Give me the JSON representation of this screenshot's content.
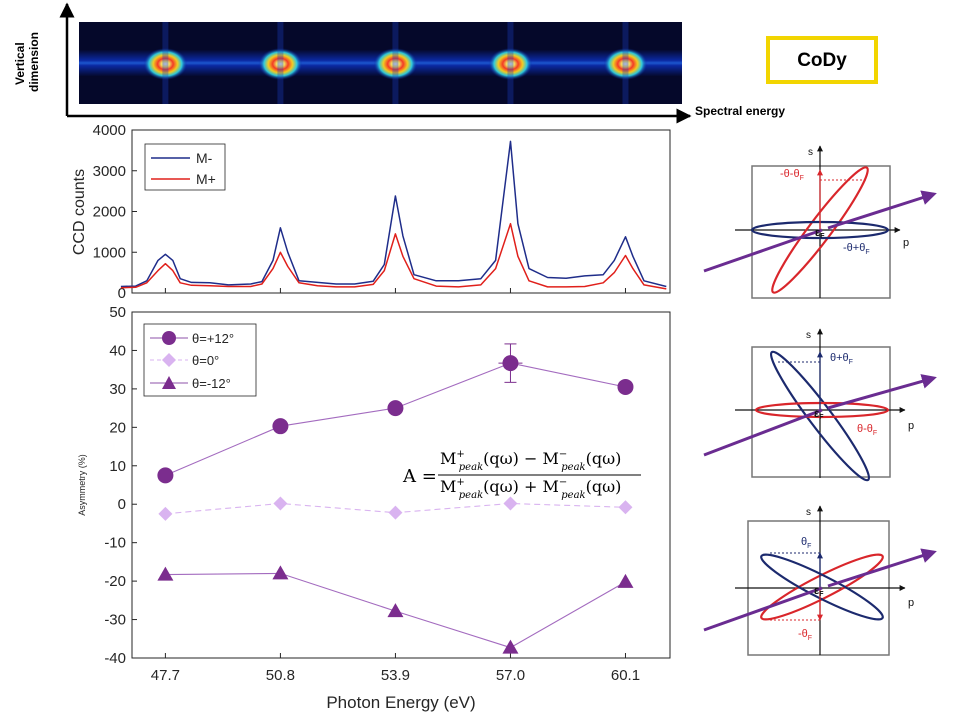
{
  "header": {
    "vertical_label_line1": "Vertical",
    "vertical_label_line2": "dimension",
    "spectral_label": "Spectral energy",
    "badge": "CoDy"
  },
  "formula": {
    "lhs": "A = ",
    "num_left": "M",
    "num_sup1": "+",
    "num_sub1": "peak",
    "num_arg1": "(qω) − M",
    "num_sup2": "−",
    "num_sub2": "peak",
    "num_arg2": "(qω)",
    "den_left": "M",
    "den_arg1": "(qω) + M",
    "den_arg2": "(qω)"
  },
  "diagrams": [
    {
      "s_label": "s",
      "p_label": "p",
      "eps_label": "ε",
      "eps_sub": "F",
      "red_label": "-θ-θ",
      "red_sub": "F",
      "blue_label": "-θ+θ",
      "blue_sub": "F"
    },
    {
      "s_label": "s",
      "p_label": "p",
      "eps_label": "ε",
      "eps_sub": "F",
      "blue_label": "θ+θ",
      "blue_sub": "F",
      "red_label": "θ-θ",
      "red_sub": "F"
    },
    {
      "s_label": "s",
      "p_label": "p",
      "eps_label": "ε",
      "eps_sub": "F",
      "blue_label": "θ",
      "blue_sub": "F",
      "red_label": "-θ",
      "red_sub": "F"
    }
  ],
  "colors": {
    "m_minus": "#1f2d8a",
    "m_plus": "#e0201b",
    "purple": "#7b2d8e",
    "light_purple": "#d9b3f0",
    "diagram_blue": "#1c2a6e",
    "diagram_red": "#d9262b",
    "badge_border": "#f2d500"
  },
  "chart_data": [
    {
      "type": "line",
      "ylabel": "CCD counts",
      "ylim": [
        0,
        4000
      ],
      "yticks": [
        0,
        1000,
        2000,
        3000,
        4000
      ],
      "legend_position": "top-left",
      "series": [
        {
          "name": "M-",
          "points": [
            [
              46.5,
              160
            ],
            [
              46.9,
              170
            ],
            [
              47.2,
              300
            ],
            [
              47.5,
              800
            ],
            [
              47.7,
              950
            ],
            [
              47.9,
              800
            ],
            [
              48.1,
              350
            ],
            [
              48.4,
              260
            ],
            [
              48.9,
              250
            ],
            [
              49.4,
              200
            ],
            [
              50.0,
              220
            ],
            [
              50.3,
              280
            ],
            [
              50.6,
              800
            ],
            [
              50.8,
              1600
            ],
            [
              51.0,
              1000
            ],
            [
              51.3,
              300
            ],
            [
              51.8,
              260
            ],
            [
              52.3,
              220
            ],
            [
              52.8,
              220
            ],
            [
              53.3,
              290
            ],
            [
              53.6,
              700
            ],
            [
              53.9,
              2380
            ],
            [
              54.1,
              1400
            ],
            [
              54.4,
              450
            ],
            [
              55.0,
              300
            ],
            [
              55.6,
              300
            ],
            [
              56.2,
              350
            ],
            [
              56.6,
              800
            ],
            [
              57.0,
              3720
            ],
            [
              57.2,
              1700
            ],
            [
              57.5,
              600
            ],
            [
              58.0,
              380
            ],
            [
              58.5,
              360
            ],
            [
              59.0,
              420
            ],
            [
              59.5,
              450
            ],
            [
              59.8,
              800
            ],
            [
              60.1,
              1380
            ],
            [
              60.3,
              900
            ],
            [
              60.6,
              300
            ],
            [
              61.2,
              160
            ]
          ]
        },
        {
          "name": "M+",
          "points": [
            [
              46.5,
              130
            ],
            [
              46.9,
              140
            ],
            [
              47.2,
              250
            ],
            [
              47.5,
              550
            ],
            [
              47.7,
              720
            ],
            [
              47.9,
              550
            ],
            [
              48.1,
              250
            ],
            [
              48.4,
              190
            ],
            [
              48.9,
              180
            ],
            [
              49.4,
              160
            ],
            [
              50.0,
              160
            ],
            [
              50.3,
              220
            ],
            [
              50.6,
              600
            ],
            [
              50.8,
              1000
            ],
            [
              51.0,
              650
            ],
            [
              51.3,
              250
            ],
            [
              51.8,
              180
            ],
            [
              52.3,
              150
            ],
            [
              52.8,
              150
            ],
            [
              53.3,
              210
            ],
            [
              53.6,
              550
            ],
            [
              53.9,
              1450
            ],
            [
              54.1,
              900
            ],
            [
              54.4,
              350
            ],
            [
              55.0,
              170
            ],
            [
              55.6,
              150
            ],
            [
              56.2,
              200
            ],
            [
              56.6,
              600
            ],
            [
              57.0,
              1700
            ],
            [
              57.2,
              900
            ],
            [
              57.5,
              300
            ],
            [
              58.0,
              150
            ],
            [
              58.5,
              150
            ],
            [
              59.0,
              160
            ],
            [
              59.5,
              250
            ],
            [
              59.8,
              500
            ],
            [
              60.1,
              920
            ],
            [
              60.3,
              600
            ],
            [
              60.6,
              200
            ],
            [
              61.2,
              100
            ]
          ]
        }
      ]
    },
    {
      "type": "line",
      "xlabel": "Photon Energy (eV)",
      "ylabel": "Asymmetry (%)",
      "x": [
        47.7,
        50.8,
        53.9,
        57.0,
        60.1
      ],
      "xtick_labels": [
        "47.7",
        "50.8",
        "53.9",
        "57.0",
        "60.1"
      ],
      "xlim": [
        46.8,
        61.3
      ],
      "ylim": [
        -40,
        50
      ],
      "yticks": [
        -40,
        -30,
        -20,
        -10,
        0,
        10,
        20,
        30,
        40,
        50
      ],
      "legend_position": "top-left",
      "series": [
        {
          "name": "θ=+12°",
          "marker": "circle",
          "values": [
            7.5,
            20.3,
            25.0,
            36.7,
            30.5
          ],
          "error_at": 57.0,
          "error": 5
        },
        {
          "name": "θ=0°",
          "marker": "diamond",
          "values": [
            -2.5,
            0.2,
            -2.2,
            0.2,
            -0.8
          ]
        },
        {
          "name": "θ=-12°",
          "marker": "triangle",
          "values": [
            -18.3,
            -18.0,
            -27.8,
            -37.3,
            -20.2
          ]
        }
      ]
    }
  ]
}
